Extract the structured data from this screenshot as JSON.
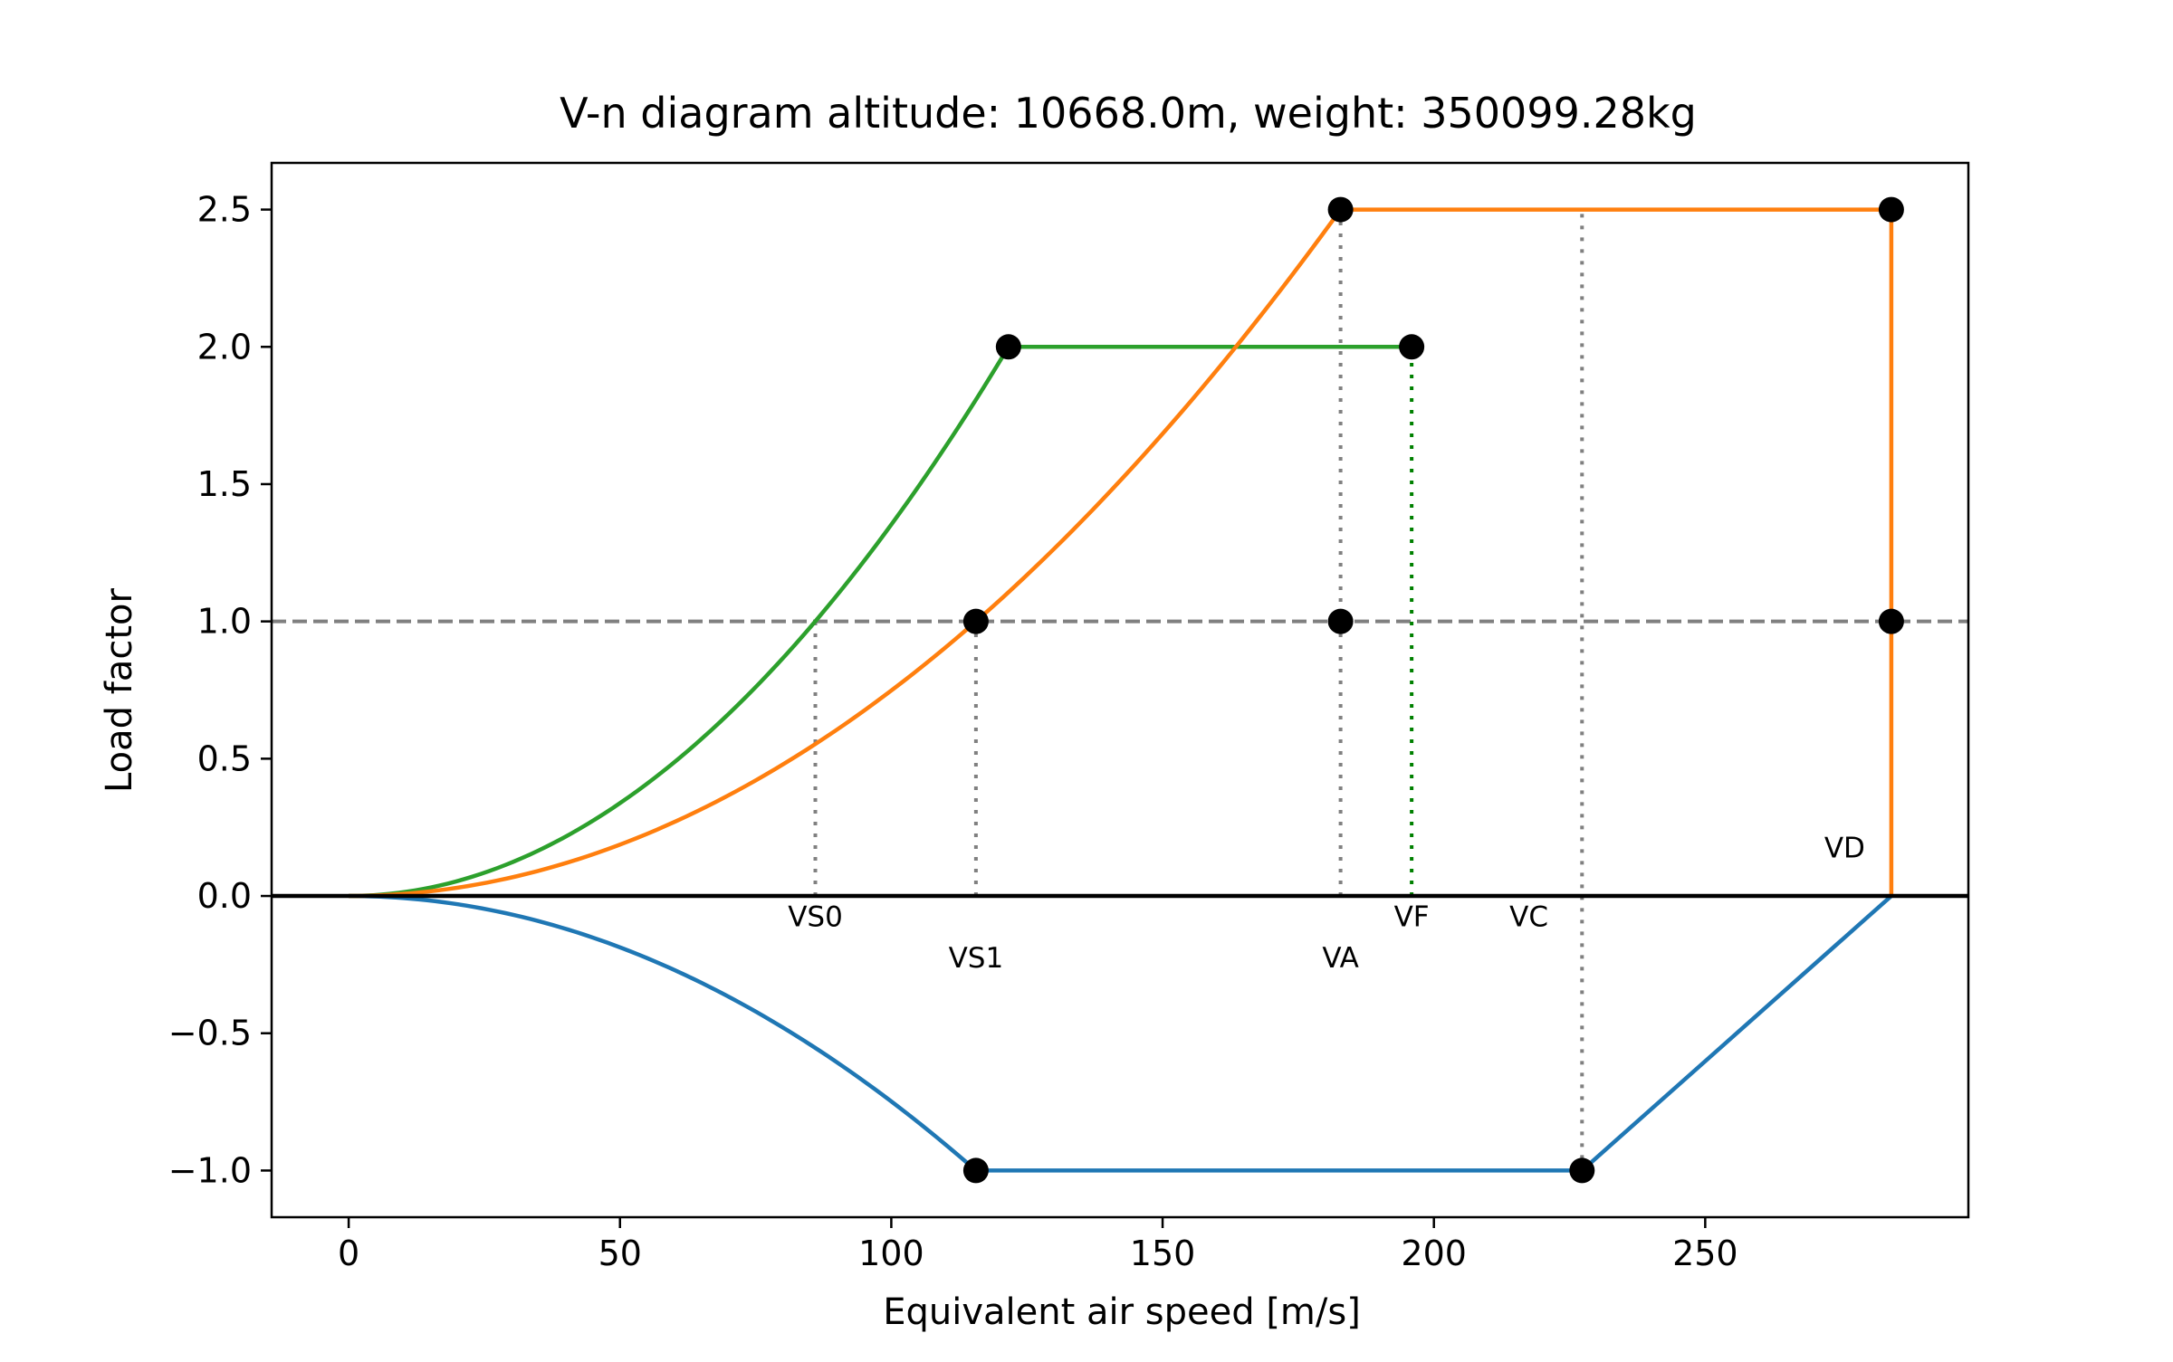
{
  "chart_data": {
    "type": "line",
    "title": "V-n diagram altitude: 10668.0m, weight: 350099.28kg",
    "xlabel": "Equivalent air speed [m/s]",
    "ylabel": "Load factor",
    "xlim": [
      -14.2,
      298.5
    ],
    "ylim": [
      -1.17,
      2.67
    ],
    "xticks": [
      0,
      50,
      100,
      150,
      200,
      250
    ],
    "xtick_labels": [
      "0",
      "50",
      "100",
      "150",
      "200",
      "250"
    ],
    "yticks": [
      -1.0,
      -0.5,
      0.0,
      0.5,
      1.0,
      1.5,
      2.0,
      2.5
    ],
    "ytick_labels": [
      "−1.0",
      "−0.5",
      "0.0",
      "0.5",
      "1.0",
      "1.5",
      "2.0",
      "2.5"
    ],
    "grid": false,
    "legend": "none",
    "colors": {
      "clean_positive": "#ff7f0e",
      "flaps_positive": "#2ca02c",
      "negative": "#1f77b4",
      "reference": "#808080",
      "vf_marker": "#008000",
      "points": "#000000"
    },
    "speeds": {
      "VS0": 86.0,
      "VS1": 115.6,
      "VA": 182.8,
      "VF": 195.9,
      "VC": 227.3,
      "VD": 284.3,
      "VF_flaps_stall_limit": 121.6,
      "VS_negative": 115.6
    },
    "limits": {
      "n_max_clean": 2.5,
      "n_max_flaps": 2.0,
      "n_min": -1.0,
      "reference_n": 1.0
    },
    "speed_labels": [
      {
        "text": "VS0",
        "x": 86.0,
        "y": -0.11
      },
      {
        "text": "VS1",
        "x": 115.6,
        "y": -0.26
      },
      {
        "text": "VA",
        "x": 182.8,
        "y": -0.26
      },
      {
        "text": "VF",
        "x": 195.9,
        "y": -0.11
      },
      {
        "text": "VC",
        "x": 217.5,
        "y": -0.11
      },
      {
        "text": "VD",
        "x": 275.7,
        "y": 0.14
      }
    ],
    "points": [
      {
        "x": 182.8,
        "y": 2.5
      },
      {
        "x": 284.3,
        "y": 2.5
      },
      {
        "x": 121.6,
        "y": 2.0
      },
      {
        "x": 195.9,
        "y": 2.0
      },
      {
        "x": 115.6,
        "y": 1.0
      },
      {
        "x": 182.8,
        "y": 1.0
      },
      {
        "x": 284.3,
        "y": 1.0
      },
      {
        "x": 115.6,
        "y": -1.0
      },
      {
        "x": 227.3,
        "y": -1.0
      }
    ]
  }
}
